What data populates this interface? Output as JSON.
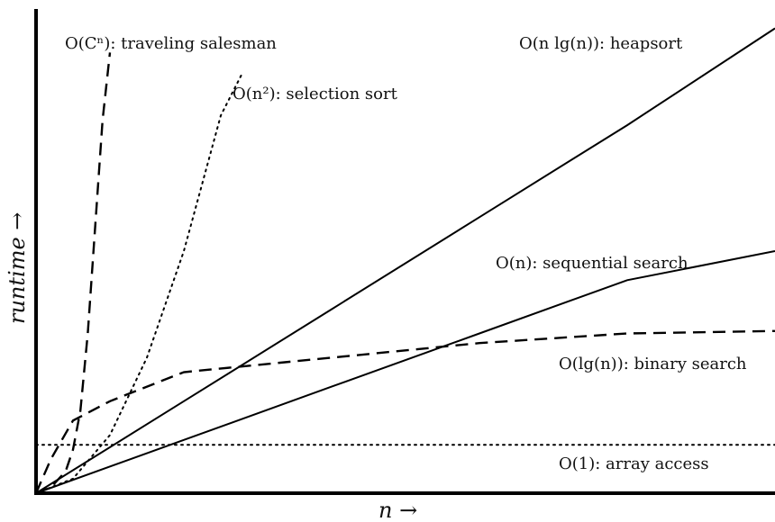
{
  "chart_data": {
    "type": "line",
    "title": "",
    "xlabel": "n →",
    "ylabel": "runtime →",
    "grid": false,
    "legend": "none (labels placed next to each curve)",
    "xlim": [
      0,
      100
    ],
    "ylim": [
      0,
      100
    ],
    "series": [
      {
        "name": "O(Cⁿ): traveling salesman",
        "style": "dashed",
        "x": [
          0,
          2,
          4,
          5,
          6,
          7,
          8,
          9,
          10
        ],
        "y": [
          0,
          1.2,
          4.5,
          9,
          17,
          33,
          55,
          77,
          91
        ]
      },
      {
        "name": "O(n²): selection sort",
        "style": "dotted",
        "x": [
          0,
          5,
          10,
          15,
          20,
          25,
          28
        ],
        "y": [
          0,
          3,
          12,
          28,
          50,
          78,
          87
        ]
      },
      {
        "name": "O(n lg(n)): heapsort",
        "style": "solid",
        "x": [
          0,
          20,
          40,
          60,
          80,
          100
        ],
        "y": [
          0,
          19,
          38,
          57,
          76,
          96
        ]
      },
      {
        "name": "O(n): sequential search",
        "style": "solid",
        "x": [
          0,
          20,
          40,
          60,
          80,
          100
        ],
        "y": [
          0,
          11,
          22,
          33,
          44,
          50
        ]
      },
      {
        "name": "O(lg(n)): binary search",
        "style": "dashed",
        "x": [
          0,
          2,
          5,
          10,
          20,
          40,
          60,
          80,
          100
        ],
        "y": [
          0,
          7,
          15,
          19,
          25,
          28,
          31,
          33,
          33.5
        ]
      },
      {
        "name": "O(1): array access",
        "style": "dotted",
        "x": [
          0,
          100
        ],
        "y": [
          10,
          10
        ]
      }
    ]
  },
  "labels": {
    "traveling_salesman": "O(Cⁿ): traveling salesman",
    "selection_sort": "O(n²): selection sort",
    "heapsort": "O(n lg(n)): heapsort",
    "sequential_search": "O(n): sequential search",
    "binary_search": "O(lg(n)): binary search",
    "array_access": "O(1): array access"
  }
}
